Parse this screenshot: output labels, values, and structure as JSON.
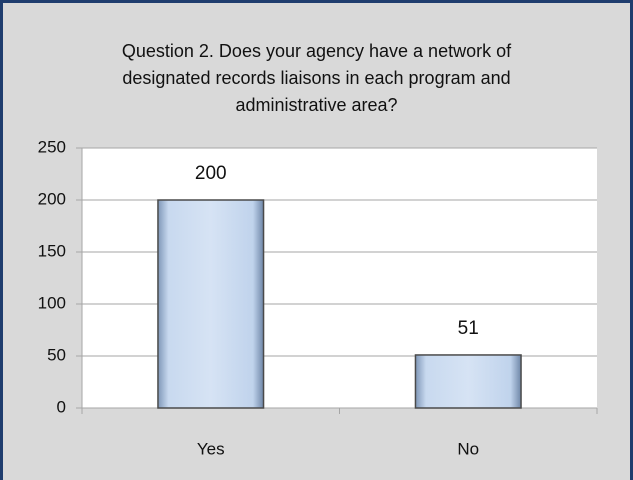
{
  "chart_data": {
    "type": "bar",
    "title": "Question 2. Does your agency have a network of designated records liaisons in each program and administrative area?",
    "categories": [
      "Yes",
      "No"
    ],
    "values": [
      200,
      51
    ],
    "color": "#c6d9f1",
    "ylim": [
      0,
      250
    ],
    "yticks": [
      0,
      50,
      100,
      150,
      200,
      250
    ],
    "grid": true
  }
}
